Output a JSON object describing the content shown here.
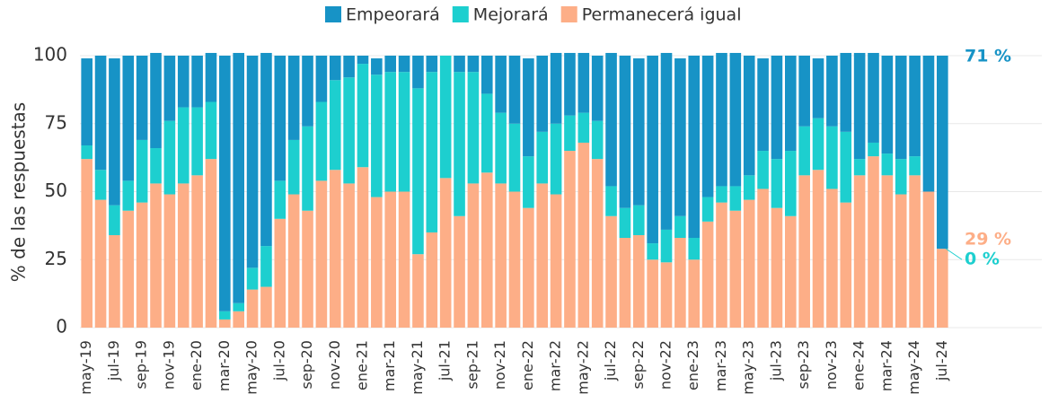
{
  "chart_data": {
    "type": "stacked_bar",
    "y_label": "% de las respuestas",
    "categories": [
      "may-19",
      null,
      "jul-19",
      null,
      "sep-19",
      null,
      "nov-19",
      null,
      "ene-20",
      null,
      "mar-20",
      null,
      "may-20",
      null,
      "jul-20",
      null,
      "sep-20",
      null,
      "nov-20",
      null,
      "ene-21",
      null,
      "mar-21",
      null,
      "may-21",
      null,
      "jul-21",
      null,
      "sep-21",
      null,
      "nov-21",
      null,
      "ene-22",
      null,
      "mar-22",
      null,
      "may-22",
      null,
      "jul-22",
      null,
      "sep-22",
      null,
      "nov-22",
      null,
      "ene-23",
      null,
      "mar-23",
      null,
      "may-23",
      null,
      "jul-23",
      null,
      "sep-23",
      null,
      "nov-23",
      null,
      "ene-24",
      null,
      "mar-24",
      null,
      "may-24",
      null,
      "jul-24"
    ],
    "series": [
      {
        "name": "Empeorará",
        "color": "#1793c6",
        "values": [
          32,
          42,
          54,
          46,
          31,
          35,
          24,
          19,
          19,
          18,
          94,
          92,
          78,
          71,
          46,
          31,
          26,
          17,
          9,
          8,
          3,
          6,
          6,
          6,
          12,
          6,
          0,
          6,
          6,
          14,
          21,
          25,
          36,
          28,
          26,
          23,
          22,
          24,
          49,
          56,
          54,
          69,
          65,
          58,
          67,
          52,
          49,
          49,
          44,
          34,
          38,
          35,
          26,
          22,
          26,
          29,
          39,
          33,
          36,
          38,
          37,
          50,
          71
        ],
        "value_labels": [
          null,
          null,
          null,
          null,
          null,
          null,
          null,
          null,
          null,
          null,
          null,
          null,
          null,
          null,
          null,
          null,
          null,
          null,
          null,
          null,
          null,
          null,
          null,
          null,
          null,
          null,
          null,
          null,
          null,
          null,
          null,
          null,
          null,
          null,
          null,
          null,
          null,
          null,
          null,
          null,
          null,
          null,
          null,
          null,
          null,
          null,
          null,
          null,
          null,
          null,
          null,
          null,
          null,
          null,
          null,
          null,
          null,
          null,
          null,
          null,
          null,
          null,
          "71 %"
        ]
      },
      {
        "name": "Mejorará",
        "color": "#1dcfcf",
        "values": [
          5,
          11,
          11,
          11,
          23,
          13,
          27,
          28,
          25,
          21,
          3,
          3,
          8,
          15,
          14,
          20,
          31,
          29,
          33,
          39,
          38,
          45,
          44,
          44,
          61,
          59,
          45,
          53,
          41,
          29,
          26,
          25,
          19,
          19,
          26,
          13,
          11,
          14,
          11,
          11,
          11,
          6,
          12,
          8,
          8,
          9,
          6,
          9,
          9,
          14,
          18,
          24,
          18,
          19,
          23,
          26,
          6,
          5,
          8,
          13,
          7,
          0,
          0
        ],
        "value_labels": [
          null,
          null,
          null,
          null,
          null,
          null,
          null,
          null,
          null,
          null,
          null,
          null,
          null,
          null,
          null,
          null,
          null,
          null,
          null,
          null,
          null,
          null,
          null,
          null,
          null,
          null,
          null,
          null,
          null,
          null,
          null,
          null,
          null,
          null,
          null,
          null,
          null,
          null,
          null,
          null,
          null,
          null,
          null,
          null,
          null,
          null,
          null,
          null,
          null,
          null,
          null,
          null,
          null,
          null,
          null,
          null,
          null,
          null,
          null,
          null,
          null,
          null,
          "0 %"
        ]
      },
      {
        "name": "Permanecerá igual",
        "color": "#fdae87",
        "values": [
          62,
          47,
          34,
          43,
          46,
          53,
          49,
          53,
          56,
          62,
          3,
          6,
          14,
          15,
          40,
          49,
          43,
          54,
          58,
          53,
          59,
          48,
          50,
          50,
          27,
          35,
          55,
          41,
          53,
          57,
          53,
          50,
          44,
          53,
          49,
          65,
          68,
          62,
          41,
          33,
          34,
          25,
          24,
          33,
          25,
          39,
          46,
          43,
          47,
          51,
          44,
          41,
          56,
          58,
          51,
          46,
          56,
          63,
          56,
          49,
          56,
          50,
          29
        ],
        "value_labels": [
          null,
          null,
          null,
          null,
          null,
          null,
          null,
          null,
          null,
          null,
          null,
          null,
          null,
          null,
          null,
          null,
          null,
          null,
          null,
          null,
          null,
          null,
          null,
          null,
          null,
          null,
          null,
          null,
          null,
          null,
          null,
          null,
          null,
          null,
          null,
          null,
          null,
          null,
          null,
          null,
          null,
          null,
          null,
          null,
          null,
          null,
          null,
          null,
          null,
          null,
          null,
          null,
          null,
          null,
          null,
          null,
          null,
          null,
          null,
          null,
          null,
          null,
          "29 %"
        ]
      }
    ],
    "ylim": [
      0,
      100
    ],
    "yticks": [
      0,
      25,
      50,
      75,
      100
    ],
    "grid": true,
    "legend": "top"
  }
}
